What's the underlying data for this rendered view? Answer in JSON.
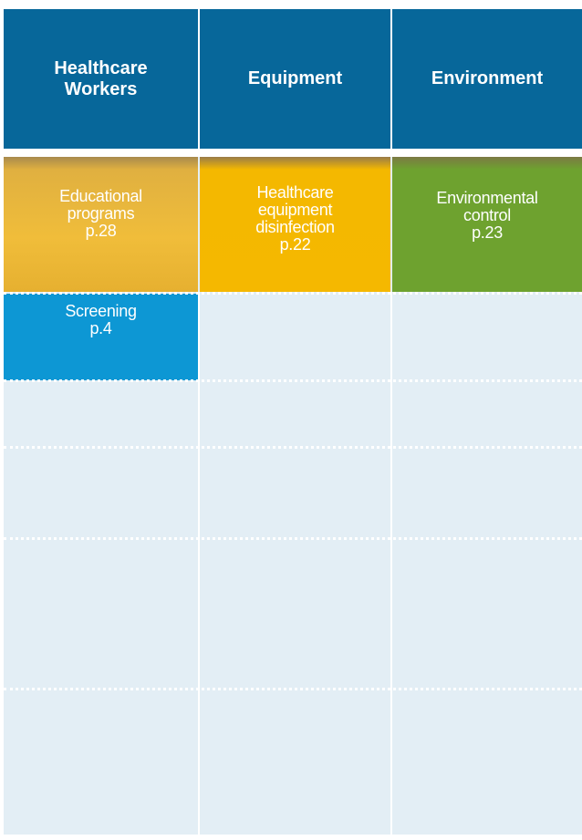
{
  "header": {
    "columns": [
      "Healthcare\nWorkers",
      "Equipment",
      "Environment"
    ]
  },
  "table": {
    "rows": [
      [
        "Educational\nprograms\np.28",
        "Healthcare\nequipment\ndisinfection\np.22",
        "Environmental\ncontrol\np.23"
      ],
      [
        "Screening\np.4"
      ]
    ]
  }
}
